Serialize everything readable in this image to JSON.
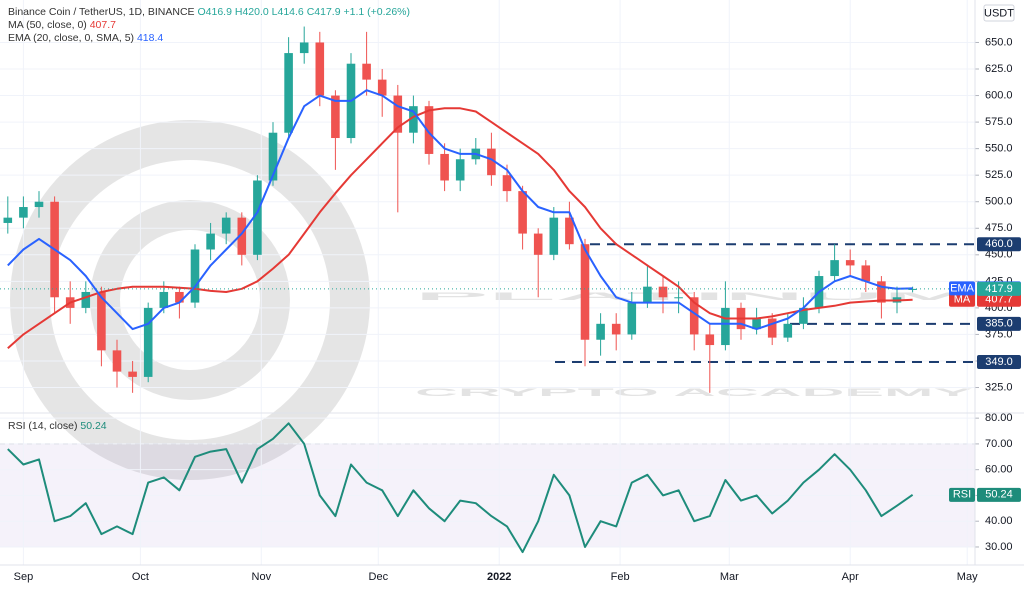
{
  "watermark": {
    "line1": "PLATINUM",
    "line2": "CRYPTO ACADEMY"
  },
  "chart_data": [
    {
      "type": "candlestick",
      "title": "Binance Coin / TetherUS, 1D, BINANCE",
      "ohlc_text": [
        "O416.9",
        "H420.0",
        "L414.6",
        "C417.9",
        "+1.1 (+0.26%)"
      ],
      "currency": "USDT",
      "up_color": "#26a69a",
      "down_color": "#ef5350",
      "x": [
        0,
        4,
        8,
        12,
        16,
        20,
        24,
        28,
        32,
        36,
        40,
        44,
        48,
        52,
        56,
        60,
        64,
        68,
        72,
        76,
        80,
        84,
        88,
        92,
        96,
        100,
        104,
        108,
        112,
        116,
        120,
        124,
        128,
        132,
        136,
        140,
        144,
        148,
        152,
        156,
        160,
        164,
        168,
        172,
        176,
        180,
        184,
        188,
        192,
        196,
        200,
        204,
        208,
        212,
        216,
        220,
        224,
        228,
        232
      ],
      "open": [
        480,
        485,
        495,
        500,
        410,
        400,
        415,
        360,
        340,
        335,
        400,
        415,
        405,
        455,
        470,
        485,
        450,
        520,
        565,
        640,
        650,
        600,
        560,
        630,
        615,
        600,
        565,
        590,
        545,
        520,
        540,
        550,
        525,
        510,
        470,
        450,
        485,
        460,
        370,
        385,
        375,
        405,
        420,
        410,
        410,
        375,
        365,
        400,
        380,
        390,
        372,
        385,
        400,
        430,
        445,
        440,
        425,
        405,
        416.9
      ],
      "high": [
        505,
        505,
        510,
        505,
        425,
        425,
        420,
        370,
        350,
        405,
        425,
        420,
        460,
        480,
        490,
        490,
        525,
        575,
        655,
        665,
        660,
        605,
        640,
        660,
        625,
        610,
        600,
        595,
        555,
        550,
        560,
        565,
        535,
        515,
        475,
        495,
        500,
        465,
        395,
        395,
        415,
        440,
        430,
        425,
        415,
        385,
        425,
        405,
        400,
        395,
        395,
        410,
        435,
        460,
        455,
        445,
        430,
        420,
        420
      ],
      "low": [
        470,
        475,
        485,
        395,
        385,
        395,
        345,
        325,
        320,
        330,
        395,
        390,
        400,
        445,
        460,
        440,
        445,
        515,
        560,
        630,
        590,
        530,
        555,
        600,
        580,
        490,
        555,
        535,
        510,
        510,
        535,
        515,
        500,
        455,
        410,
        445,
        455,
        345,
        355,
        360,
        370,
        400,
        395,
        395,
        360,
        320,
        360,
        370,
        375,
        365,
        368,
        380,
        395,
        425,
        430,
        415,
        390,
        395,
        414.6
      ],
      "close": [
        485,
        495,
        500,
        410,
        400,
        415,
        360,
        340,
        335,
        400,
        415,
        405,
        455,
        470,
        485,
        450,
        520,
        565,
        640,
        650,
        600,
        560,
        630,
        615,
        600,
        565,
        590,
        545,
        520,
        540,
        550,
        525,
        510,
        470,
        450,
        485,
        460,
        370,
        385,
        375,
        405,
        420,
        410,
        410,
        375,
        365,
        400,
        380,
        390,
        372,
        385,
        400,
        430,
        445,
        440,
        425,
        405,
        410,
        417.9
      ],
      "series": [
        {
          "name": "MA (50, close, 0)",
          "short_name": "MA",
          "color": "#e53935",
          "values": [
            362,
            375,
            385,
            395,
            405,
            410,
            415,
            418,
            420,
            420,
            420,
            419,
            418,
            416,
            415,
            418,
            425,
            437,
            450,
            470,
            490,
            508,
            525,
            540,
            555,
            570,
            580,
            586,
            588,
            588,
            585,
            575,
            565,
            555,
            545,
            530,
            510,
            495,
            475,
            460,
            450,
            440,
            430,
            420,
            405,
            395,
            390,
            390,
            390,
            392,
            395,
            398,
            400,
            402,
            405,
            406,
            407,
            407,
            407.7
          ]
        },
        {
          "name": "EMA (20, close, 0, SMA, 5)",
          "short_name": "EMA",
          "color": "#2962ff",
          "values": [
            440,
            455,
            465,
            455,
            445,
            430,
            410,
            395,
            380,
            385,
            400,
            405,
            420,
            440,
            455,
            470,
            490,
            525,
            560,
            590,
            600,
            595,
            595,
            605,
            600,
            590,
            585,
            565,
            550,
            545,
            545,
            540,
            530,
            510,
            495,
            490,
            490,
            455,
            430,
            410,
            405,
            405,
            405,
            405,
            395,
            385,
            385,
            385,
            380,
            385,
            390,
            400,
            415,
            425,
            430,
            425,
            420,
            418,
            418.4
          ]
        }
      ],
      "levels": [
        {
          "value": 460,
          "label": "460.0"
        },
        {
          "value": 385,
          "label": "385.0"
        },
        {
          "value": 349,
          "label": "349.0"
        }
      ],
      "level_color": "#1c3d70",
      "xlim": [
        -2,
        248
      ],
      "xticks": [
        {
          "value": 4,
          "label": "Sep"
        },
        {
          "value": 34,
          "label": "Oct"
        },
        {
          "value": 65,
          "label": "Nov"
        },
        {
          "value": 95,
          "label": "Dec"
        },
        {
          "value": 126,
          "label": "2022"
        },
        {
          "value": 157,
          "label": "Feb"
        },
        {
          "value": 185,
          "label": "Mar"
        },
        {
          "value": 216,
          "label": "Apr"
        },
        {
          "value": 246,
          "label": "May"
        }
      ],
      "ylim": [
        301,
        690
      ],
      "yticks": [
        {
          "value": 325,
          "label": "325.0"
        },
        {
          "value": 350,
          "label": "350.0"
        },
        {
          "value": 375,
          "label": "375.0"
        },
        {
          "value": 400,
          "label": "400.0"
        },
        {
          "value": 425,
          "label": "425.0"
        },
        {
          "value": 450,
          "label": "450.0"
        },
        {
          "value": 475,
          "label": "475.0"
        },
        {
          "value": 500,
          "label": "500.0"
        },
        {
          "value": 525,
          "label": "525.0"
        },
        {
          "value": 550,
          "label": "550.0"
        },
        {
          "value": 575,
          "label": "575.0"
        },
        {
          "value": 600,
          "label": "600.0"
        },
        {
          "value": 625,
          "label": "625.0"
        },
        {
          "value": 650,
          "label": "650.0"
        }
      ],
      "grid": true
    },
    {
      "type": "line",
      "series": [
        {
          "name": "RSI (14, close)",
          "short_name": "RSI",
          "color": "#1e8c7b",
          "values": [
            68,
            62,
            64,
            40,
            42,
            47,
            35,
            38,
            35,
            55,
            57,
            52,
            65,
            67,
            68,
            55,
            68,
            72,
            78,
            70,
            50,
            42,
            62,
            55,
            52,
            42,
            52,
            45,
            40,
            48,
            47,
            42,
            38,
            28,
            40,
            58,
            50,
            30,
            40,
            38,
            55,
            58,
            50,
            52,
            40,
            42,
            56,
            48,
            50,
            43,
            48,
            55,
            60,
            66,
            60,
            52,
            42,
            46,
            50.24
          ]
        }
      ],
      "band": [
        30,
        70
      ],
      "band_color": "#7e57c2",
      "ylim": [
        23,
        82
      ],
      "yticks": [
        {
          "value": 30,
          "label": "30.00"
        },
        {
          "value": 40,
          "label": "40.00"
        },
        {
          "value": 50,
          "label": "50.00"
        },
        {
          "value": 60,
          "label": "60.00"
        },
        {
          "value": 70,
          "label": "70.00"
        },
        {
          "value": 80,
          "label": "80.00"
        }
      ],
      "grid": true
    }
  ]
}
